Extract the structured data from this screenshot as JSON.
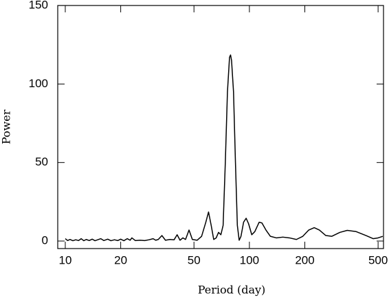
{
  "chart_data": {
    "type": "line",
    "xlabel": "Period (day)",
    "ylabel": "Power",
    "xscale": "log",
    "xlim": [
      9.1,
      535
    ],
    "ylim": [
      -4.8,
      150
    ],
    "xticks": [
      10,
      20,
      50,
      100,
      200,
      500
    ],
    "yticks": [
      0,
      50,
      100,
      150
    ],
    "grid": false,
    "series": [
      {
        "color": "#000000",
        "x": [
          10,
          10.3,
          10.6,
          11,
          11.4,
          11.8,
          12.2,
          12.6,
          13,
          13.5,
          14,
          14.5,
          15,
          15.6,
          16.2,
          17,
          17.7,
          18.5,
          19.3,
          20,
          20.8,
          21.7,
          22.5,
          23,
          24,
          25.5,
          27,
          28.5,
          30,
          31,
          32,
          33.5,
          35,
          37,
          39,
          40.5,
          42,
          43.5,
          45,
          47,
          49,
          52,
          55,
          58,
          60,
          62,
          64,
          66,
          68,
          70,
          72,
          74,
          76,
          78,
          79,
          80,
          82,
          84,
          86,
          88,
          90,
          93,
          96,
          99,
          103,
          107,
          113,
          117,
          123,
          130,
          140,
          152,
          165,
          180,
          195,
          210,
          225,
          240,
          260,
          280,
          310,
          340,
          380,
          430,
          470,
          500,
          530
        ],
        "values": [
          1.5,
          0.3,
          1,
          0.2,
          0.8,
          0.3,
          1.5,
          0.2,
          1,
          0.3,
          1.2,
          0.2,
          0.8,
          1.5,
          0.3,
          1.2,
          0.2,
          0.8,
          0.3,
          1.2,
          0.2,
          1.5,
          0.5,
          2,
          0.3,
          0.5,
          0.3,
          0.8,
          1.5,
          0.5,
          1,
          3.5,
          0.5,
          1,
          0.8,
          4,
          0.5,
          2,
          1,
          7,
          1,
          0.5,
          3,
          12,
          18.5,
          10,
          1,
          2,
          5.5,
          4,
          10,
          50,
          95,
          117,
          118.5,
          115,
          95,
          50,
          10,
          0.5,
          3,
          12,
          14.5,
          11,
          4,
          6,
          12,
          11.5,
          7,
          3,
          2,
          2.5,
          2,
          1,
          3,
          7,
          8.5,
          7,
          3.5,
          3,
          5.5,
          6.8,
          6,
          3.5,
          1.5,
          2,
          3
        ]
      }
    ]
  }
}
